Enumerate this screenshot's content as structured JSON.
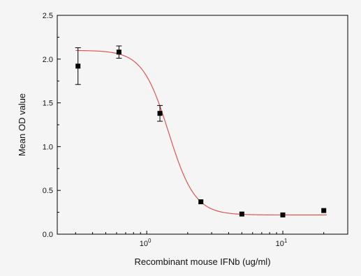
{
  "chart_data": {
    "type": "scatter",
    "xlabel": "Recombinant mouse IFNb (ug/ml)",
    "ylabel": "Mean OD value",
    "x_scale": "log",
    "xlim": [
      0.22,
      30
    ],
    "ylim": [
      0.0,
      2.5
    ],
    "y_ticks": [
      "0.0",
      "0.5",
      "1.0",
      "1.5",
      "2.0",
      "2.5"
    ],
    "x_ticks": [
      {
        "value": 1,
        "base": "10",
        "exp": "0"
      },
      {
        "value": 10,
        "base": "10",
        "exp": "1"
      }
    ],
    "grid": false,
    "series": [
      {
        "marker": "square",
        "color": "#000000",
        "points": [
          {
            "x": 0.3125,
            "y": 1.92,
            "err": 0.21
          },
          {
            "x": 0.625,
            "y": 2.08,
            "err": 0.07
          },
          {
            "x": 1.25,
            "y": 1.38,
            "err": 0.09
          },
          {
            "x": 2.5,
            "y": 0.37,
            "err": 0.0
          },
          {
            "x": 5,
            "y": 0.23,
            "err": 0.0
          },
          {
            "x": 10,
            "y": 0.22,
            "err": 0.0
          },
          {
            "x": 20,
            "y": 0.27,
            "err": 0.0
          }
        ]
      }
    ],
    "fit_curve": {
      "type": "four-parameter logistic",
      "color": "#e05555",
      "top": 2.1,
      "bottom": 0.22,
      "ec50": 1.45,
      "hill": 4.5
    }
  }
}
